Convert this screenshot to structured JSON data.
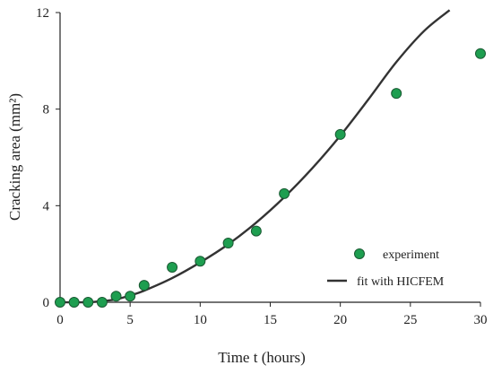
{
  "chart_data": {
    "type": "scatter",
    "xlabel": "Time t (hours)",
    "ylabel": "Cracking area (mm²)",
    "xlim": [
      0,
      30
    ],
    "ylim": [
      0,
      12
    ],
    "x_ticks": [
      0,
      5,
      10,
      15,
      20,
      25,
      30
    ],
    "y_ticks": [
      0,
      4,
      8,
      12
    ],
    "grid": false,
    "legend_position": "bottom-right",
    "series": [
      {
        "name": "experiment",
        "kind": "markers",
        "color": "#1e9e50",
        "x": [
          0,
          1,
          2,
          3,
          4,
          5,
          6,
          8,
          10,
          12,
          14,
          16,
          20,
          24,
          30
        ],
        "y": [
          0,
          0,
          0,
          0,
          0.25,
          0.25,
          0.7,
          1.45,
          1.7,
          2.45,
          2.95,
          4.5,
          6.95,
          8.65,
          10.3
        ]
      },
      {
        "name": "fit with HICFEM",
        "kind": "line",
        "color": "#333333",
        "x": [
          0,
          2,
          3,
          4,
          5,
          6,
          8,
          10,
          12,
          14,
          16,
          18,
          20,
          22,
          24,
          26,
          27.8
        ],
        "y": [
          0,
          0,
          0.05,
          0.12,
          0.28,
          0.48,
          1.0,
          1.65,
          2.4,
          3.3,
          4.35,
          5.55,
          6.9,
          8.4,
          9.95,
          11.25,
          12.1
        ]
      }
    ]
  }
}
